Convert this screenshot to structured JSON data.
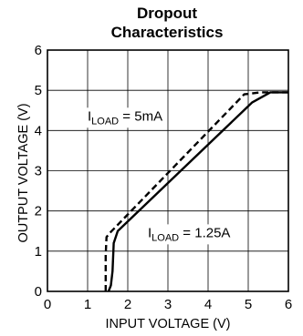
{
  "chart_data": {
    "type": "line",
    "title_lines": [
      "Dropout",
      "Characteristics"
    ],
    "xlabel": "INPUT VOLTAGE (V)",
    "ylabel": "OUTPUT VOLTAGE (V)",
    "xlim": [
      0,
      6
    ],
    "ylim": [
      0,
      6
    ],
    "xticks": [
      "0",
      "1",
      "2",
      "3",
      "4",
      "5",
      "6"
    ],
    "yticks": [
      "0",
      "1",
      "2",
      "3",
      "4",
      "5",
      "6"
    ],
    "grid": true,
    "series": [
      {
        "name_main": "I",
        "name_sub": "LOAD",
        "name_value": " = 5mA",
        "style": "dashed",
        "x": [
          1.45,
          1.45,
          1.47,
          1.55,
          4.9,
          5.3,
          6.0
        ],
        "y": [
          0.0,
          0.9,
          1.35,
          1.45,
          4.9,
          4.95,
          4.95
        ]
      },
      {
        "name_main": "I",
        "name_sub": "LOAD",
        "name_value": " = 1.25A",
        "style": "solid",
        "x": [
          1.52,
          1.58,
          1.62,
          1.65,
          1.75,
          5.1,
          5.55,
          6.0
        ],
        "y": [
          0.0,
          0.15,
          0.5,
          1.2,
          1.5,
          4.7,
          4.95,
          4.95
        ]
      }
    ]
  }
}
